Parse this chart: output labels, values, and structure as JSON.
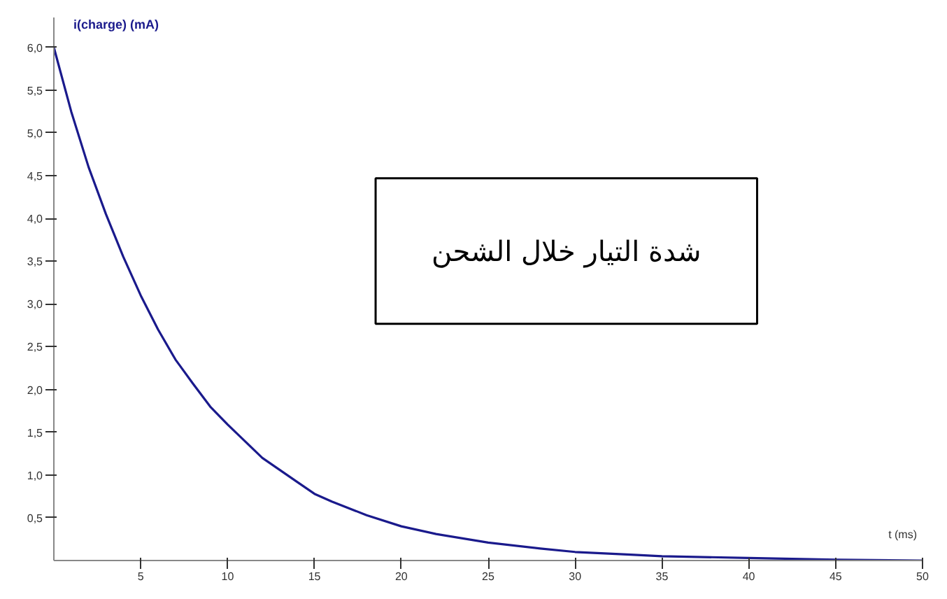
{
  "chart_data": {
    "type": "line",
    "ylabel": "i(charge) (mA)",
    "xlabel": "t (ms)",
    "annotations": [
      "شدة التيار خلال الشحن"
    ],
    "x": [
      0,
      1,
      2,
      3,
      4,
      5,
      6,
      7,
      8,
      9,
      10,
      12,
      14,
      15,
      16,
      18,
      20,
      22,
      25,
      28,
      30,
      33,
      35,
      40,
      45,
      50
    ],
    "series": [
      {
        "color": "#1a1a8c",
        "values": [
          6.0,
          5.25,
          4.6,
          4.05,
          3.55,
          3.1,
          2.7,
          2.35,
          2.07,
          1.8,
          1.59,
          1.2,
          0.92,
          0.78,
          0.69,
          0.53,
          0.4,
          0.31,
          0.21,
          0.14,
          0.1,
          0.07,
          0.05,
          0.03,
          0.01,
          0.0
        ]
      }
    ],
    "xlim": [
      0,
      50
    ],
    "ylim": [
      0,
      6.35
    ],
    "xticks": [
      5,
      10,
      15,
      20,
      25,
      30,
      35,
      40,
      45,
      50
    ],
    "yticks": [
      {
        "value": 0.5,
        "label": "0,5"
      },
      {
        "value": 1.0,
        "label": "1,0"
      },
      {
        "value": 1.5,
        "label": "1,5"
      },
      {
        "value": 2.0,
        "label": "2,0"
      },
      {
        "value": 2.5,
        "label": "2,5"
      },
      {
        "value": 3.0,
        "label": "3,0"
      },
      {
        "value": 3.5,
        "label": "3,5"
      },
      {
        "value": 4.0,
        "label": "4,0"
      },
      {
        "value": 4.5,
        "label": "4,5"
      },
      {
        "value": 5.0,
        "label": "5,0"
      },
      {
        "value": 5.5,
        "label": "5,5"
      },
      {
        "value": 6.0,
        "label": "6,0"
      }
    ],
    "grid": false,
    "line_style": "solid",
    "marker": "none"
  }
}
